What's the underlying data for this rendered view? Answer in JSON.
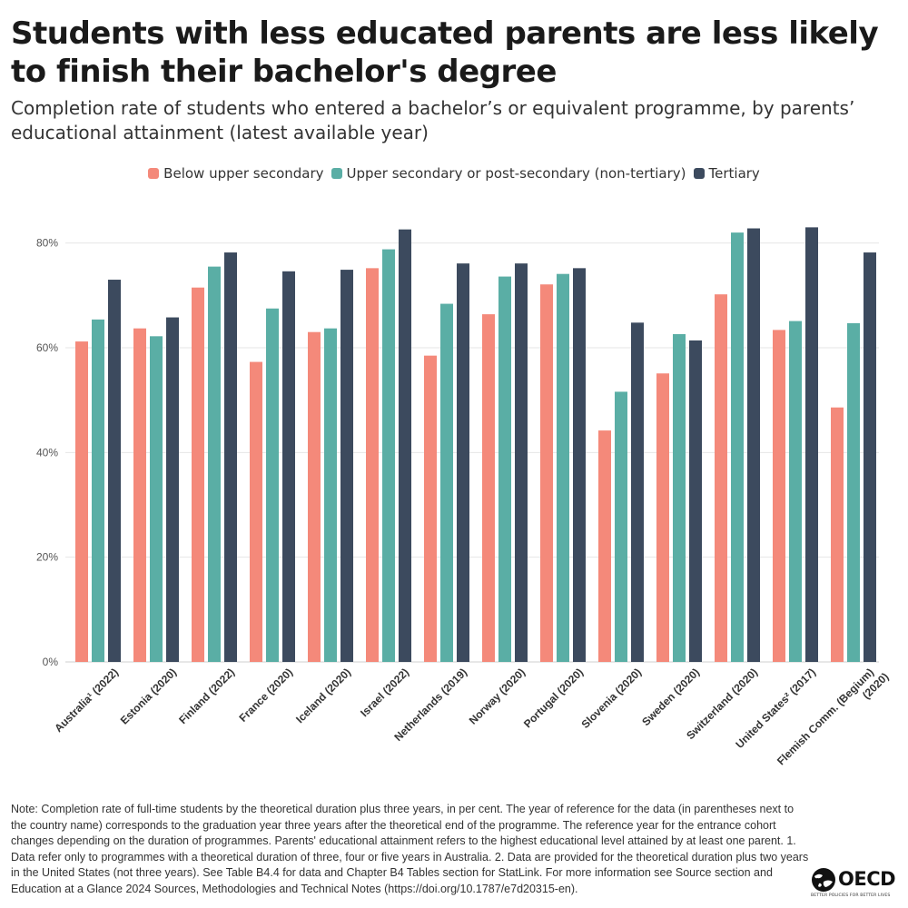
{
  "title": "Students with less educated parents are less likely to finish their bachelor's degree",
  "subtitle": "Completion rate of students who entered a bachelor’s or equivalent programme, by parents’ educational attainment (latest available year)",
  "note": "Note: Completion rate of full-time students by the theoretical duration plus three years, in per cent. The year of reference for the data (in parentheses next to the country name) corresponds to the graduation year three years after the theoretical end of the programme. The reference year for the entrance cohort changes depending on the duration of programmes. Parents' educational attainment refers to the highest educational level attained by at least one parent. 1. Data refer only to programmes with a theoretical duration of three, four or five years in Australia. 2. Data are provided for the theoretical duration plus two years in the United States (not three years). See Table B4.4 for data and Chapter B4 Tables section for StatLink. For more information see Source section and Education at a Glance 2024 Sources, Methodologies and Technical Notes (https://doi.org/10.1787/e7d20315-en).",
  "logo": {
    "text": "OECD",
    "tagline": "BETTER POLICIES FOR BETTER LIVES"
  },
  "chart_data": {
    "type": "bar",
    "categories": [
      [
        "Australia¹ (2022)"
      ],
      [
        "Estonia (2020)"
      ],
      [
        "Finland (2022)"
      ],
      [
        "France (2020)"
      ],
      [
        "Iceland (2020)"
      ],
      [
        "Israel (2022)"
      ],
      [
        "Netherlands (2019)"
      ],
      [
        "Norway (2020)"
      ],
      [
        "Portugal (2020)"
      ],
      [
        "Slovenia (2020)"
      ],
      [
        "Sweden (2020)"
      ],
      [
        "Switzerland (2020)"
      ],
      [
        "United States² (2017)"
      ],
      [
        "Flemish Comm. (Begium)",
        "(2020)"
      ]
    ],
    "series": [
      {
        "name": "Below upper secondary",
        "color": "#f4897a",
        "values": [
          61.2,
          63.7,
          71.5,
          57.3,
          63.0,
          75.2,
          58.5,
          66.4,
          72.1,
          44.2,
          55.1,
          70.2,
          63.4,
          48.6
        ]
      },
      {
        "name": "Upper secondary or post-secondary (non-tertiary)",
        "color": "#5aaea5",
        "values": [
          65.4,
          62.2,
          75.5,
          67.5,
          63.7,
          78.8,
          68.4,
          73.6,
          74.1,
          51.6,
          62.6,
          82.0,
          65.1,
          64.7
        ]
      },
      {
        "name": "Tertiary",
        "color": "#3c4a5e",
        "values": [
          73.0,
          65.8,
          78.2,
          74.6,
          74.9,
          82.6,
          76.1,
          76.1,
          75.2,
          64.8,
          61.4,
          82.8,
          83.0,
          78.2
        ]
      }
    ],
    "yticks": [
      "0%",
      "20%",
      "40%",
      "60%",
      "80%"
    ],
    "ytick_values": [
      0,
      20,
      40,
      60,
      80
    ],
    "ylim": [
      0,
      90
    ],
    "grid": true
  }
}
